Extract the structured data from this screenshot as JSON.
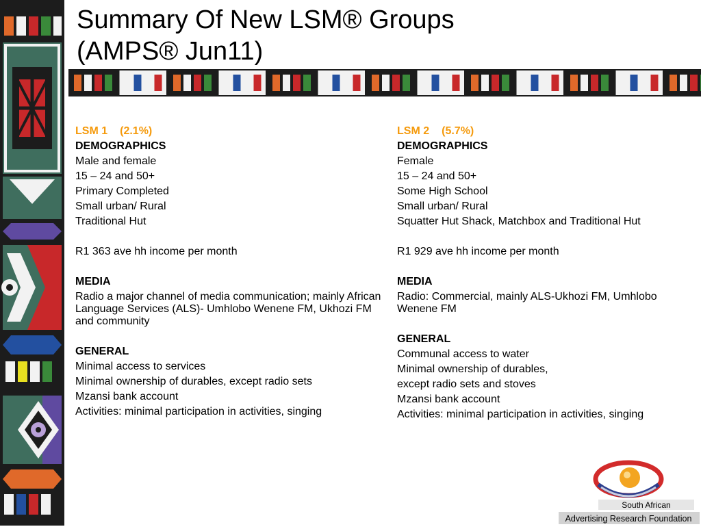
{
  "title": {
    "line1": "Summary Of New LSM® Groups",
    "line2": "(AMPS® Jun11)"
  },
  "left": {
    "heading": "LSM 1",
    "pct": "(2.1%)",
    "demographics_label": "DEMOGRAPHICS",
    "demographics": [
      "Male and female",
      "15 – 24 and 50+",
      "Primary Completed",
      "Small urban/ Rural",
      "Traditional Hut"
    ],
    "income": "R1 363 ave hh income per month",
    "media_label": "MEDIA",
    "media_text": "Radio a major channel of media communication; mainly African Language Services (ALS)- Umhlobo Wenene FM, Ukhozi FM and community",
    "general_label": "GENERAL",
    "general": [
      "Minimal access to services",
      "Minimal ownership of durables, except radio sets",
      "Mzansi bank account",
      "Activities: minimal participation in activities, singing"
    ]
  },
  "right": {
    "heading": "LSM 2",
    "pct": "(5.7%)",
    "demographics_label": "DEMOGRAPHICS",
    "demographics": [
      "Female",
      "15 – 24 and 50+",
      "Some High School",
      "Small urban/ Rural",
      "Squatter Hut Shack, Matchbox and Traditional Hut"
    ],
    "income": "R1 929 ave hh income per month",
    "media_label": "MEDIA",
    "media_text": "Radio: Commercial, mainly ALS-Ukhozi FM, Umhlobo Wenene FM",
    "general_label": "GENERAL",
    "general": [
      "Communal access to water",
      "Minimal ownership of durables,",
      "except radio sets and stoves",
      "Mzansi bank account",
      "Activities: minimal participation in activities, singing"
    ]
  },
  "logo": {
    "line1": "South African",
    "line2": "Advertising Research Foundation"
  },
  "colors": {
    "heading_orange": "#f59a0c",
    "sidebar_dark": "#1c1c1c",
    "pattern_green": "#3f6e5e",
    "pattern_red": "#c8282a",
    "pattern_blue": "#2350a0",
    "pattern_purple": "#5f4aa0",
    "pattern_orange": "#e0692a"
  }
}
